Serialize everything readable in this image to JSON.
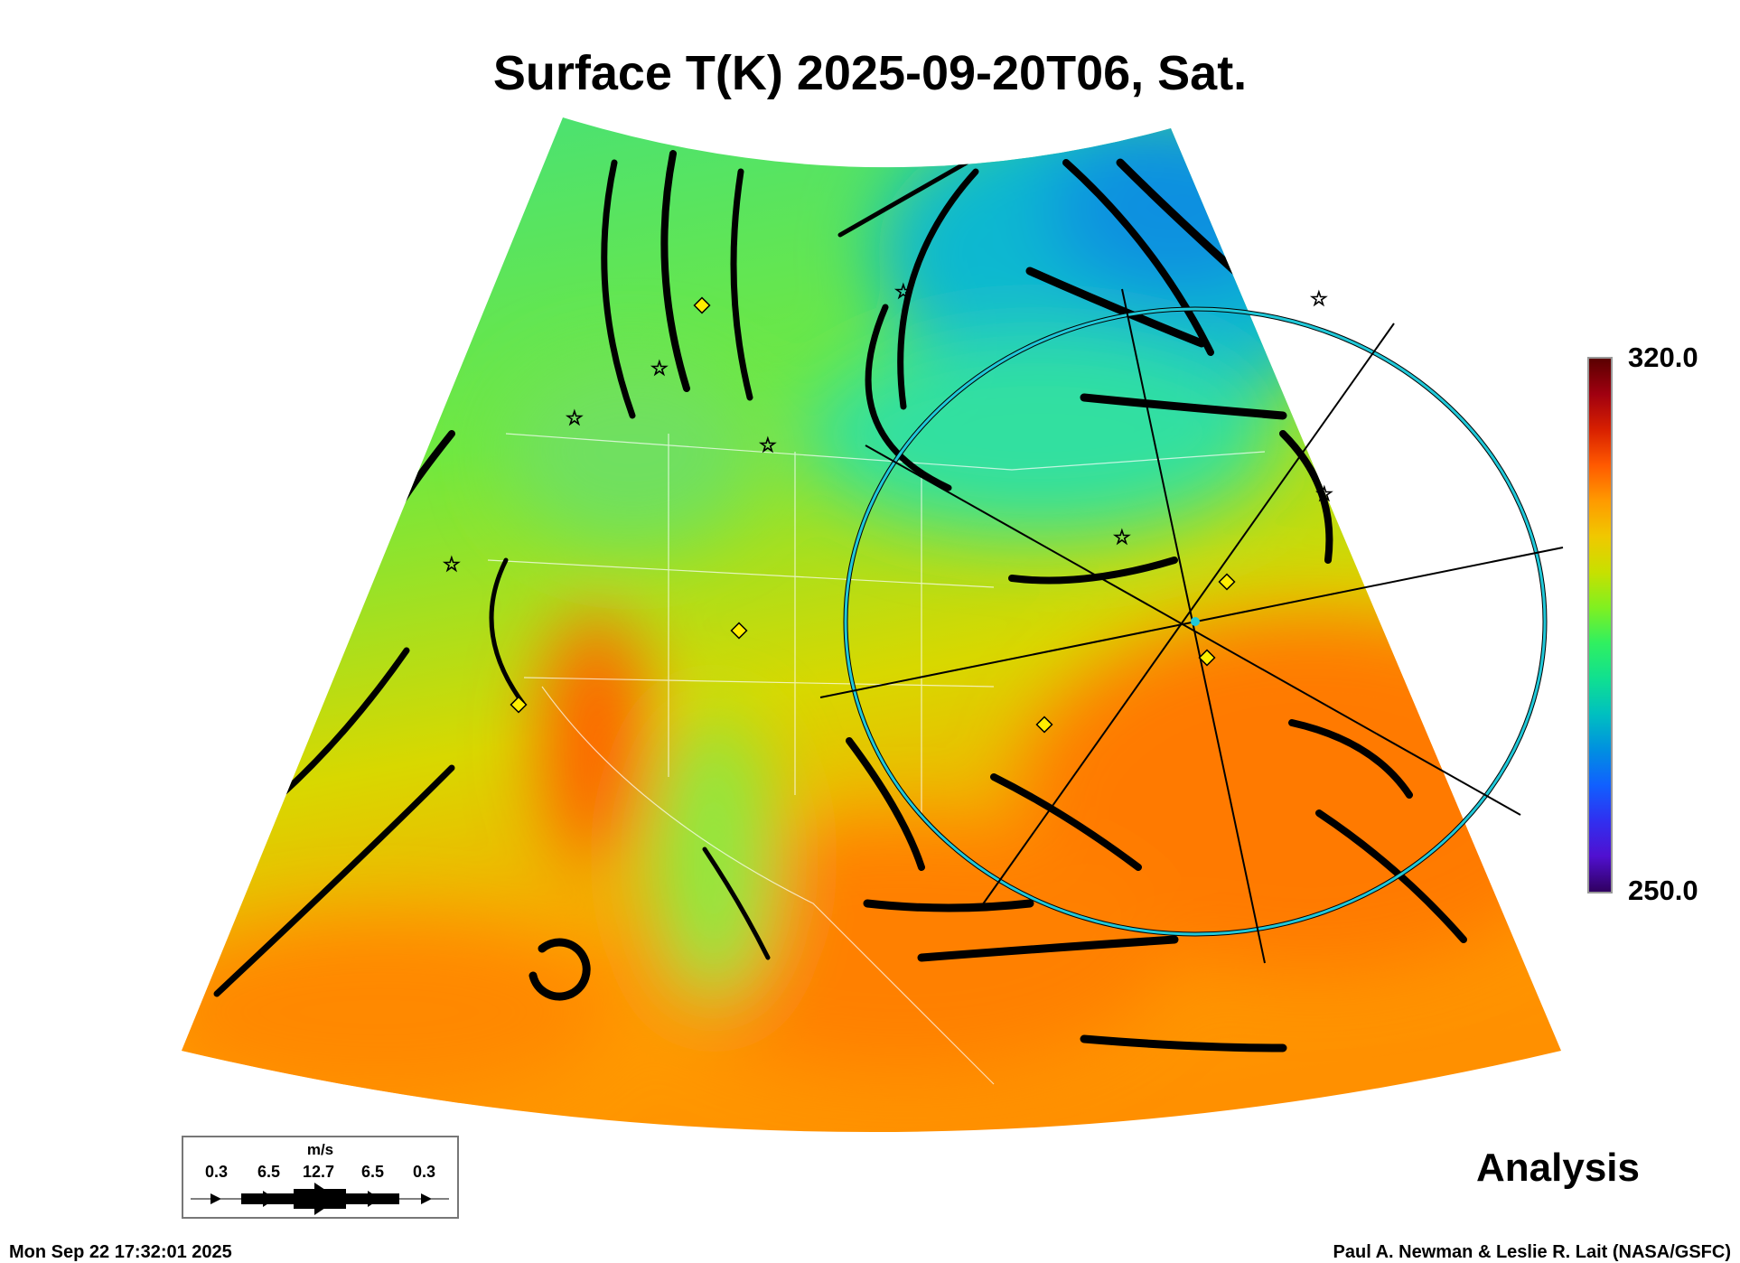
{
  "title": "Surface T(K) 2025-09-20T06, Sat.",
  "colorbar": {
    "max_label": "320.0",
    "min_label": "250.0",
    "min": 250.0,
    "max": 320.0
  },
  "legend": {
    "unit": "m/s",
    "values": [
      "0.3",
      "6.5",
      "12.7",
      "6.5",
      "0.3"
    ]
  },
  "analysis_label": "Analysis",
  "timestamp": "Mon Sep 22 17:32:01 2025",
  "credit": "Paul A. Newman & Leslie R. Lait (NASA/GSFC)"
}
